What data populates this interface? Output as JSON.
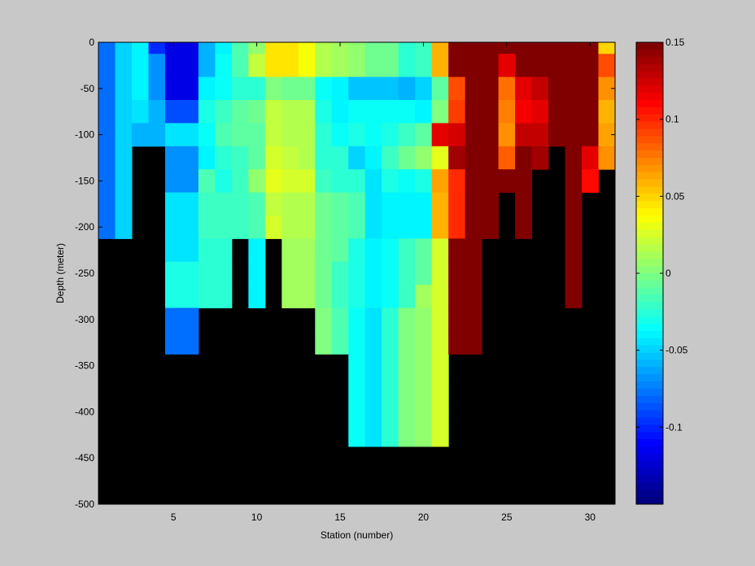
{
  "chart_data": {
    "type": "heatmap",
    "title": "",
    "xlabel": "Station (number)",
    "ylabel": "Depth (meter)",
    "xlim": [
      1,
      31
    ],
    "ylim": [
      -500,
      0
    ],
    "xticks": [
      5,
      10,
      15,
      20,
      25,
      30
    ],
    "yticks": [
      0,
      -50,
      -100,
      -150,
      -200,
      -250,
      -300,
      -350,
      -400,
      -450,
      -500
    ],
    "colorbar": {
      "colormap": "jet",
      "clim": [
        -0.15,
        0.15
      ],
      "ticks": [
        0.15,
        0.1,
        0.05,
        0,
        -0.05,
        -0.1
      ],
      "tick_labels": [
        "0.15",
        "0.1",
        "0.05",
        "0",
        "-0.05",
        "-0.1"
      ]
    },
    "no_data_color": "#000000",
    "depth_bins": [
      0,
      -12.5,
      -37.5,
      -62.5,
      -87.5,
      -112.5,
      -137.5,
      -162.5,
      -187.5,
      -212.5,
      -237.5,
      -262.5,
      -287.5,
      -312.5,
      -337.5,
      -362.5,
      -387.5,
      -412.5,
      -437.5,
      -462.5,
      -487.5,
      -500
    ],
    "stations": [
      {
        "station": 1,
        "max_depth": 200,
        "values": [
          -0.08,
          -0.08,
          -0.08,
          -0.08,
          -0.08,
          -0.08,
          -0.08,
          -0.08,
          -0.08
        ]
      },
      {
        "station": 2,
        "max_depth": 200,
        "values": [
          -0.05,
          -0.05,
          -0.05,
          -0.05,
          -0.05,
          -0.05,
          -0.05,
          -0.05,
          -0.05
        ]
      },
      {
        "station": 3,
        "max_depth": 100,
        "values": [
          -0.04,
          -0.04,
          -0.04,
          -0.045,
          -0.06
        ]
      },
      {
        "station": 4,
        "max_depth": 100,
        "values": [
          -0.1,
          -0.07,
          -0.07,
          -0.06,
          -0.06
        ]
      },
      {
        "station": 5,
        "max_depth": 300,
        "values": [
          -0.12,
          -0.12,
          -0.12,
          -0.09,
          -0.045,
          -0.07,
          -0.07,
          -0.045,
          -0.045,
          -0.045,
          -0.03,
          -0.03,
          -0.08,
          -0.08
        ]
      },
      {
        "station": 6,
        "max_depth": 300,
        "values": [
          -0.12,
          -0.12,
          -0.12,
          -0.09,
          -0.045,
          -0.07,
          -0.07,
          -0.045,
          -0.045,
          -0.045,
          -0.03,
          -0.03,
          -0.08,
          -0.08
        ]
      },
      {
        "station": 7,
        "max_depth": 250,
        "values": [
          -0.06,
          -0.06,
          -0.04,
          -0.03,
          -0.035,
          -0.04,
          -0.015,
          -0.02,
          -0.02,
          -0.025,
          -0.025,
          -0.025
        ]
      },
      {
        "station": 8,
        "max_depth": 250,
        "values": [
          -0.04,
          -0.035,
          -0.035,
          -0.02,
          -0.015,
          -0.025,
          -0.03,
          -0.02,
          -0.02,
          -0.025,
          -0.025,
          -0.025
        ]
      },
      {
        "station": 9,
        "max_depth": 200,
        "values": [
          -0.015,
          -0.015,
          -0.025,
          -0.01,
          -0.01,
          -0.02,
          -0.02,
          -0.02,
          -0.02
        ]
      },
      {
        "station": 10,
        "max_depth": 250,
        "values": [
          0.005,
          0.02,
          -0.025,
          -0.005,
          -0.01,
          -0.01,
          0.005,
          -0.015,
          -0.015,
          -0.04,
          -0.04,
          -0.04
        ]
      },
      {
        "station": 11,
        "max_depth": 200,
        "values": [
          0.045,
          0.045,
          0.0,
          0.02,
          0.02,
          0.025,
          0.03,
          0.02,
          0.025
        ]
      },
      {
        "station": 12,
        "max_depth": 250,
        "values": [
          0.045,
          0.045,
          -0.005,
          0.015,
          0.015,
          0.02,
          0.025,
          0.015,
          0.015,
          0.01,
          0.01,
          0.01
        ]
      },
      {
        "station": 13,
        "max_depth": 250,
        "values": [
          0.035,
          0.035,
          -0.005,
          0.015,
          0.015,
          0.015,
          0.025,
          0.015,
          0.015,
          0.01,
          0.01,
          0.01
        ]
      },
      {
        "station": 14,
        "max_depth": 300,
        "values": [
          0.015,
          0.015,
          -0.035,
          -0.03,
          -0.025,
          -0.025,
          -0.02,
          -0.005,
          -0.005,
          -0.005,
          -0.005,
          -0.005,
          0.0,
          0.0
        ]
      },
      {
        "station": 15,
        "max_depth": 300,
        "values": [
          0.01,
          0.01,
          -0.04,
          -0.04,
          -0.035,
          -0.025,
          -0.025,
          -0.01,
          -0.01,
          -0.01,
          -0.02,
          -0.02,
          -0.015,
          -0.015
        ]
      },
      {
        "station": 16,
        "max_depth": 400,
        "values": [
          0.005,
          0.005,
          -0.055,
          -0.035,
          -0.03,
          -0.05,
          -0.025,
          -0.015,
          -0.015,
          -0.03,
          -0.03,
          -0.03,
          -0.035,
          -0.035,
          -0.035,
          -0.035,
          -0.035,
          -0.035
        ]
      },
      {
        "station": 17,
        "max_depth": 400,
        "values": [
          -0.005,
          -0.005,
          -0.055,
          -0.035,
          -0.035,
          -0.04,
          -0.045,
          -0.045,
          -0.045,
          -0.04,
          -0.04,
          -0.04,
          -0.045,
          -0.045,
          -0.045,
          -0.045,
          -0.045,
          -0.045
        ]
      },
      {
        "station": 18,
        "max_depth": 400,
        "values": [
          -0.005,
          -0.005,
          -0.055,
          -0.035,
          -0.03,
          -0.02,
          -0.03,
          -0.04,
          -0.04,
          -0.035,
          -0.035,
          -0.035,
          -0.025,
          -0.025,
          -0.025,
          -0.025,
          -0.025,
          -0.025
        ]
      },
      {
        "station": 19,
        "max_depth": 400,
        "values": [
          -0.025,
          -0.025,
          -0.06,
          -0.035,
          -0.02,
          -0.005,
          -0.035,
          -0.04,
          -0.04,
          -0.02,
          -0.02,
          -0.02,
          0.0,
          0.0,
          0.0,
          0.0,
          0.0,
          0.0
        ]
      },
      {
        "station": 20,
        "max_depth": 400,
        "values": [
          -0.02,
          -0.02,
          -0.05,
          -0.04,
          -0.01,
          0.005,
          -0.03,
          -0.04,
          -0.04,
          -0.01,
          -0.01,
          0.01,
          0.005,
          0.005,
          0.005,
          0.005,
          0.005,
          0.005
        ]
      },
      {
        "station": 21,
        "max_depth": 400,
        "values": [
          0.06,
          0.06,
          -0.01,
          0.0,
          0.12,
          0.03,
          0.065,
          0.06,
          0.06,
          0.025,
          0.025,
          0.025,
          0.025,
          0.025,
          0.025,
          0.025,
          0.025,
          0.025
        ]
      },
      {
        "station": 22,
        "max_depth": 300,
        "values": [
          0.15,
          0.15,
          0.09,
          0.095,
          0.125,
          0.14,
          0.1,
          0.1,
          0.1,
          0.15,
          0.15,
          0.15,
          0.15,
          0.15
        ]
      },
      {
        "station": 23,
        "max_depth": 300,
        "values": [
          0.15,
          0.15,
          0.15,
          0.15,
          0.15,
          0.15,
          0.15,
          0.15,
          0.15,
          0.15,
          0.15,
          0.15,
          0.15,
          0.15
        ]
      },
      {
        "station": 24,
        "max_depth": 200,
        "values": [
          0.15,
          0.15,
          0.15,
          0.15,
          0.15,
          0.15,
          0.15,
          0.15,
          0.15
        ]
      },
      {
        "station": 25,
        "max_depth": 150,
        "values": [
          0.15,
          0.12,
          0.08,
          0.075,
          0.07,
          0.085,
          0.15
        ]
      },
      {
        "station": 26,
        "max_depth": 200,
        "values": [
          0.15,
          0.15,
          0.12,
          0.115,
          0.13,
          0.15,
          0.15,
          0.15,
          0.15
        ]
      },
      {
        "station": 27,
        "max_depth": 125,
        "values": [
          0.15,
          0.15,
          0.13,
          0.12,
          0.13,
          0.14
        ]
      },
      {
        "station": 28,
        "max_depth": 100,
        "values": [
          0.15,
          0.15,
          0.15,
          0.15,
          0.15
        ]
      },
      {
        "station": 29,
        "max_depth": 250,
        "values": [
          0.15,
          0.15,
          0.15,
          0.15,
          0.15,
          0.15,
          0.15,
          0.15,
          0.15,
          0.15,
          0.15,
          0.15
        ]
      },
      {
        "station": 30,
        "max_depth": 150,
        "values": [
          0.15,
          0.15,
          0.15,
          0.15,
          0.15,
          0.12,
          0.11
        ]
      },
      {
        "station": 31,
        "max_depth": 125,
        "values": [
          0.05,
          0.09,
          0.07,
          0.06,
          0.065,
          0.07
        ]
      }
    ]
  }
}
